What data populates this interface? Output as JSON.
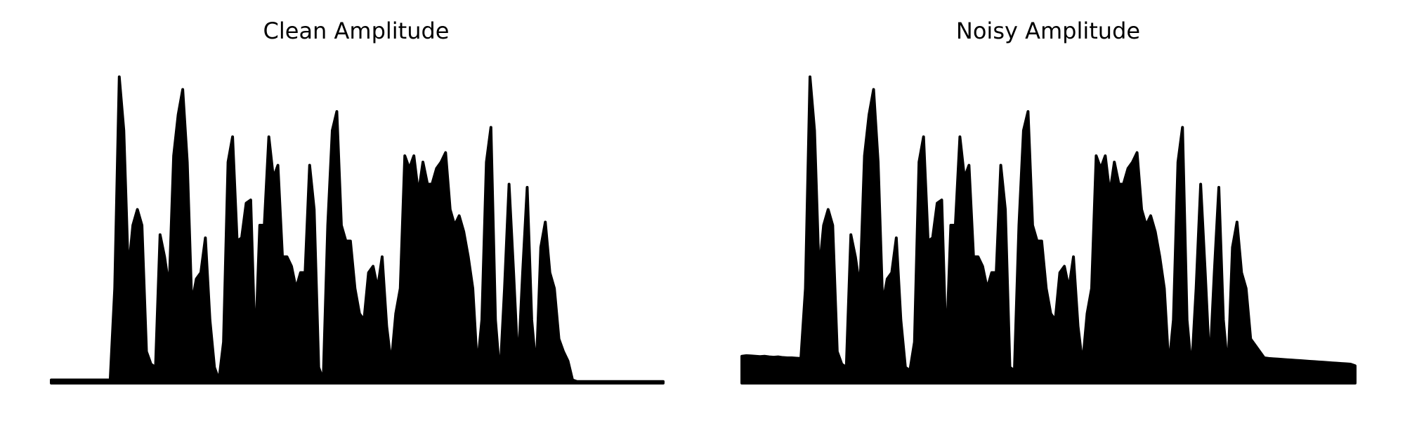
{
  "chart_data": [
    {
      "type": "area",
      "title": "Clean Amplitude",
      "color": "#000000",
      "ylim": [
        0,
        1
      ],
      "values": [
        0.01,
        0.01,
        0.01,
        0.01,
        0.01,
        0.01,
        0.01,
        0.01,
        0.01,
        0.01,
        0.01,
        0.01,
        0.01,
        0.01,
        0.3,
        0.97,
        0.8,
        0.35,
        0.5,
        0.55,
        0.5,
        0.1,
        0.06,
        0.05,
        0.47,
        0.4,
        0.3,
        0.72,
        0.85,
        0.93,
        0.7,
        0.25,
        0.33,
        0.35,
        0.46,
        0.2,
        0.05,
        0.01,
        0.13,
        0.7,
        0.78,
        0.45,
        0.46,
        0.57,
        0.58,
        0.1,
        0.5,
        0.5,
        0.78,
        0.65,
        0.69,
        0.4,
        0.4,
        0.37,
        0.3,
        0.35,
        0.35,
        0.69,
        0.55,
        0.05,
        0.01,
        0.5,
        0.8,
        0.86,
        0.5,
        0.45,
        0.45,
        0.3,
        0.22,
        0.2,
        0.35,
        0.37,
        0.3,
        0.4,
        0.18,
        0.06,
        0.22,
        0.3,
        0.72,
        0.68,
        0.72,
        0.6,
        0.7,
        0.63,
        0.63,
        0.68,
        0.7,
        0.73,
        0.55,
        0.5,
        0.53,
        0.48,
        0.4,
        0.3,
        0.05,
        0.2,
        0.7,
        0.81,
        0.2,
        0.02,
        0.3,
        0.63,
        0.35,
        0.05,
        0.35,
        0.62,
        0.2,
        0.04,
        0.43,
        0.51,
        0.35,
        0.3,
        0.14,
        0.1,
        0.07,
        0.01,
        0.005,
        0.005,
        0.005,
        0.005,
        0.005,
        0.005,
        0.005,
        0.005,
        0.005,
        0.005,
        0.005,
        0.005,
        0.005,
        0.005,
        0.005,
        0.005,
        0.005,
        0.005,
        0.005,
        0.005
      ]
    },
    {
      "type": "area",
      "title": "Noisy Amplitude",
      "color": "#000000",
      "ylim": [
        0,
        1
      ],
      "values": [
        0.085,
        0.087,
        0.086,
        0.085,
        0.084,
        0.085,
        0.083,
        0.082,
        0.083,
        0.081,
        0.08,
        0.08,
        0.079,
        0.078,
        0.3,
        0.97,
        0.8,
        0.35,
        0.5,
        0.55,
        0.5,
        0.1,
        0.06,
        0.05,
        0.47,
        0.4,
        0.3,
        0.72,
        0.85,
        0.93,
        0.7,
        0.25,
        0.33,
        0.35,
        0.46,
        0.2,
        0.05,
        0.04,
        0.13,
        0.7,
        0.78,
        0.45,
        0.46,
        0.57,
        0.58,
        0.1,
        0.5,
        0.5,
        0.78,
        0.65,
        0.69,
        0.4,
        0.4,
        0.37,
        0.3,
        0.35,
        0.35,
        0.69,
        0.55,
        0.05,
        0.04,
        0.5,
        0.8,
        0.86,
        0.5,
        0.45,
        0.45,
        0.3,
        0.22,
        0.2,
        0.35,
        0.37,
        0.3,
        0.4,
        0.18,
        0.06,
        0.22,
        0.3,
        0.72,
        0.68,
        0.72,
        0.6,
        0.7,
        0.63,
        0.63,
        0.68,
        0.7,
        0.73,
        0.55,
        0.5,
        0.53,
        0.48,
        0.4,
        0.3,
        0.05,
        0.2,
        0.7,
        0.81,
        0.2,
        0.04,
        0.3,
        0.63,
        0.35,
        0.05,
        0.35,
        0.62,
        0.2,
        0.04,
        0.43,
        0.51,
        0.35,
        0.3,
        0.14,
        0.12,
        0.1,
        0.08,
        0.078,
        0.077,
        0.076,
        0.075,
        0.074,
        0.073,
        0.072,
        0.071,
        0.07,
        0.069,
        0.068,
        0.067,
        0.066,
        0.065,
        0.064,
        0.063,
        0.062,
        0.061,
        0.06,
        0.055
      ]
    }
  ]
}
